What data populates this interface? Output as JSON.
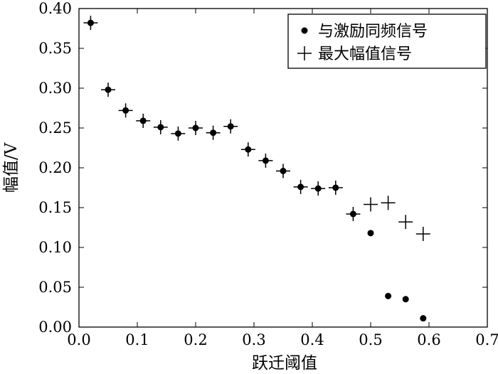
{
  "chart_data": {
    "type": "scatter",
    "title": "",
    "xlabel": "跃迁阈值",
    "ylabel": "幅值/V",
    "xlim": [
      0.0,
      0.7
    ],
    "ylim": [
      0.0,
      0.4
    ],
    "xticks": [
      "0.0",
      "0.1",
      "0.2",
      "0.3",
      "0.4",
      "0.5",
      "0.6",
      "0.7"
    ],
    "yticks": [
      "0.00",
      "0.05",
      "0.10",
      "0.15",
      "0.20",
      "0.25",
      "0.30",
      "0.35",
      "0.40"
    ],
    "grid": false,
    "legend_position": "top-right",
    "series": [
      {
        "name": "与激励同频信号",
        "marker": "dot",
        "x": [
          0.02,
          0.05,
          0.08,
          0.11,
          0.14,
          0.17,
          0.2,
          0.23,
          0.26,
          0.29,
          0.32,
          0.35,
          0.38,
          0.41,
          0.44,
          0.47,
          0.5,
          0.53,
          0.56,
          0.59
        ],
        "y": [
          0.382,
          0.298,
          0.272,
          0.259,
          0.251,
          0.243,
          0.25,
          0.244,
          0.252,
          0.223,
          0.209,
          0.196,
          0.176,
          0.174,
          0.175,
          0.142,
          0.118,
          0.039,
          0.035,
          0.011
        ]
      },
      {
        "name": "最大幅值信号",
        "marker": "plus",
        "x": [
          0.02,
          0.05,
          0.08,
          0.11,
          0.14,
          0.17,
          0.2,
          0.23,
          0.26,
          0.29,
          0.32,
          0.35,
          0.38,
          0.41,
          0.44,
          0.47,
          0.5,
          0.53,
          0.56,
          0.59
        ],
        "y": [
          0.382,
          0.298,
          0.272,
          0.259,
          0.251,
          0.243,
          0.25,
          0.244,
          0.252,
          0.223,
          0.209,
          0.196,
          0.176,
          0.174,
          0.175,
          0.142,
          0.154,
          0.156,
          0.132,
          0.117
        ]
      }
    ]
  }
}
